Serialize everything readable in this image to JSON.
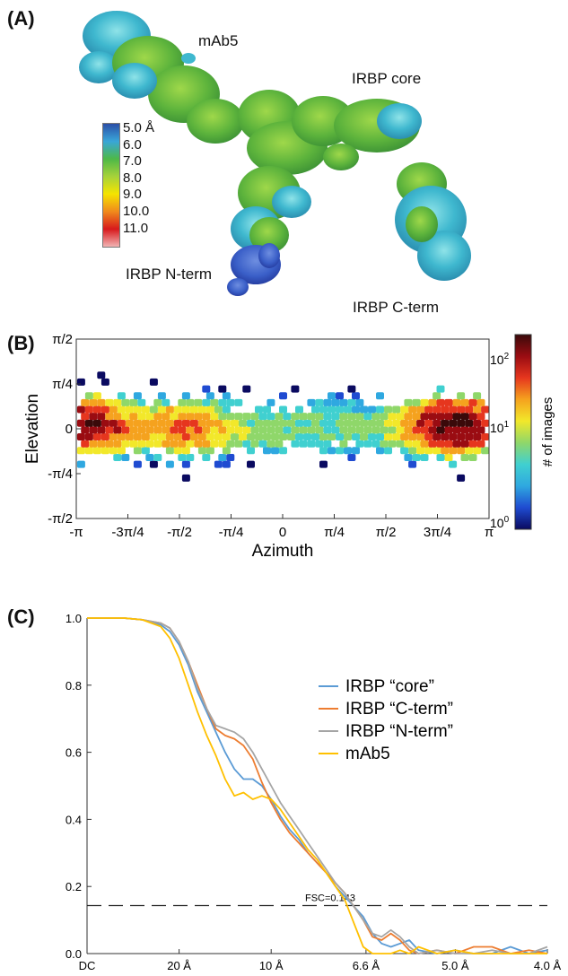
{
  "panels": {
    "a": {
      "label": "(A)",
      "labels": {
        "mab5": "mAb5",
        "core": "IRBP core",
        "nterm": "IRBP N-term",
        "cterm": "IRBP C-term"
      },
      "colorbar": {
        "ticks": [
          "5.0 Å",
          "6.0",
          "7.0",
          "8.0",
          "9.0",
          "10.0",
          "11.0"
        ],
        "colors": [
          "#2b4fa8",
          "#39a6d8",
          "#4db848",
          "#a6d23a",
          "#f5e400",
          "#f08a1c",
          "#d7191c",
          "#f2b4b4"
        ]
      }
    },
    "b": {
      "label": "(B)",
      "xlabel": "Azimuth",
      "ylabel": "Elevation",
      "xticks": [
        "-π",
        "-3π/4",
        "-π/2",
        "-π/4",
        "0",
        "π/4",
        "π/2",
        "3π/4",
        "π"
      ],
      "yticks": [
        "-π/2",
        "-π/4",
        "0",
        "π/4",
        "π/2"
      ],
      "colorbar_label": "# of images",
      "colorbar_ticks": [
        {
          "base": "10",
          "exp": "0"
        },
        {
          "base": "10",
          "exp": "1"
        },
        {
          "base": "10",
          "exp": "2"
        }
      ],
      "colormap": [
        "#0a0a60",
        "#1f4bd1",
        "#2fa8e0",
        "#40d0d0",
        "#8fd76a",
        "#f2e82a",
        "#f5a21e",
        "#e6361e",
        "#9a0c12",
        "#3a0a0a"
      ]
    },
    "c": {
      "label": "(C)",
      "annotation": "FSC=0.143",
      "threshold": 0.143
    }
  },
  "chart_data": [
    {
      "type": "heatmap",
      "title": "",
      "xlabel": "Azimuth",
      "ylabel": "Elevation",
      "xlim": [
        -3.1416,
        3.1416
      ],
      "ylim": [
        -1.5708,
        1.5708
      ],
      "xticks": [
        "-π",
        "-3π/4",
        "-π/2",
        "-π/4",
        "0",
        "π/4",
        "π/2",
        "3π/4",
        "π"
      ],
      "yticks": [
        "-π/2",
        "-π/4",
        "0",
        "π/4",
        "π/2"
      ],
      "colorbar": {
        "label": "# of images",
        "scale": "log",
        "range": [
          1,
          300
        ]
      },
      "density_peaks": [
        {
          "azimuth": -3.05,
          "elevation": 0.05,
          "count": 200
        },
        {
          "azimuth": -1.5,
          "elevation": 0.0,
          "count": 60
        },
        {
          "azimuth": 2.65,
          "elevation": 0.05,
          "count": 250
        }
      ]
    },
    {
      "type": "line",
      "title": "",
      "xlabel": "",
      "ylabel": "",
      "xticks": [
        "DC",
        "20 Å",
        "10 Å",
        "6.6 Å",
        "5.0 Å",
        "4.0 Å"
      ],
      "ylim": [
        0,
        1.0
      ],
      "yticks": [
        "0.0",
        "0.2",
        "0.4",
        "0.6",
        "0.8",
        "1.0"
      ],
      "x_unit_note": "x in 1/Å (spatial frequency)",
      "series": [
        {
          "name": "IRBP “core”",
          "color": "#5b9bd5",
          "x": [
            0,
            0.02,
            0.03,
            0.04,
            0.045,
            0.05,
            0.055,
            0.06,
            0.065,
            0.07,
            0.075,
            0.08,
            0.085,
            0.09,
            0.095,
            0.1,
            0.105,
            0.11,
            0.115,
            0.12,
            0.125,
            0.13,
            0.135,
            0.14,
            0.145,
            0.15,
            0.155,
            0.16,
            0.165,
            0.17,
            0.175,
            0.18,
            0.19,
            0.2,
            0.21,
            0.22,
            0.23,
            0.24,
            0.25
          ],
          "values": [
            1.0,
            1.0,
            0.995,
            0.98,
            0.96,
            0.92,
            0.86,
            0.78,
            0.72,
            0.66,
            0.6,
            0.55,
            0.52,
            0.52,
            0.5,
            0.46,
            0.41,
            0.37,
            0.34,
            0.3,
            0.27,
            0.24,
            0.2,
            0.17,
            0.14,
            0.11,
            0.06,
            0.03,
            0.02,
            0.03,
            0.04,
            0.01,
            0.0,
            0.01,
            0.0,
            0.0,
            0.02,
            0.0,
            0.01
          ]
        },
        {
          "name": "IRBP “C-term”",
          "color": "#ed7d31",
          "x": [
            0,
            0.02,
            0.03,
            0.04,
            0.045,
            0.05,
            0.055,
            0.06,
            0.065,
            0.07,
            0.075,
            0.08,
            0.085,
            0.09,
            0.095,
            0.1,
            0.105,
            0.11,
            0.115,
            0.12,
            0.125,
            0.13,
            0.135,
            0.14,
            0.145,
            0.15,
            0.155,
            0.16,
            0.165,
            0.17,
            0.175,
            0.18,
            0.19,
            0.2,
            0.21,
            0.22,
            0.23,
            0.24,
            0.25
          ],
          "values": [
            1.0,
            1.0,
            0.995,
            0.985,
            0.97,
            0.93,
            0.87,
            0.8,
            0.73,
            0.67,
            0.65,
            0.64,
            0.62,
            0.58,
            0.51,
            0.45,
            0.4,
            0.36,
            0.33,
            0.3,
            0.27,
            0.24,
            0.21,
            0.18,
            0.14,
            0.1,
            0.05,
            0.04,
            0.06,
            0.04,
            0.01,
            0.0,
            0.01,
            0.0,
            0.02,
            0.02,
            0.0,
            0.01,
            0.0
          ]
        },
        {
          "name": "IRBP “N-term”",
          "color": "#a5a5a5",
          "x": [
            0,
            0.02,
            0.03,
            0.04,
            0.045,
            0.05,
            0.055,
            0.06,
            0.065,
            0.07,
            0.075,
            0.08,
            0.085,
            0.09,
            0.095,
            0.1,
            0.105,
            0.11,
            0.115,
            0.12,
            0.125,
            0.13,
            0.135,
            0.14,
            0.145,
            0.15,
            0.155,
            0.16,
            0.165,
            0.17,
            0.175,
            0.18,
            0.19,
            0.2,
            0.21,
            0.22,
            0.23,
            0.24,
            0.25
          ],
          "values": [
            1.0,
            1.0,
            0.995,
            0.985,
            0.97,
            0.93,
            0.87,
            0.79,
            0.73,
            0.68,
            0.67,
            0.66,
            0.64,
            0.6,
            0.55,
            0.5,
            0.45,
            0.41,
            0.37,
            0.33,
            0.29,
            0.25,
            0.21,
            0.18,
            0.14,
            0.1,
            0.06,
            0.05,
            0.07,
            0.05,
            0.02,
            0.0,
            0.01,
            0.0,
            0.0,
            0.01,
            0.0,
            0.0,
            0.02
          ]
        },
        {
          "name": "mAb5",
          "color": "#ffc000",
          "x": [
            0,
            0.02,
            0.03,
            0.04,
            0.045,
            0.05,
            0.055,
            0.06,
            0.065,
            0.07,
            0.075,
            0.08,
            0.085,
            0.09,
            0.095,
            0.1,
            0.105,
            0.11,
            0.115,
            0.12,
            0.125,
            0.13,
            0.135,
            0.14,
            0.145,
            0.15,
            0.155,
            0.16,
            0.165,
            0.17,
            0.175,
            0.18,
            0.19,
            0.2,
            0.21,
            0.22,
            0.23,
            0.24,
            0.25
          ],
          "values": [
            1.0,
            1.0,
            0.995,
            0.975,
            0.94,
            0.88,
            0.8,
            0.72,
            0.65,
            0.59,
            0.52,
            0.47,
            0.48,
            0.46,
            0.47,
            0.46,
            0.43,
            0.39,
            0.35,
            0.31,
            0.28,
            0.24,
            0.2,
            0.16,
            0.09,
            0.02,
            0.0,
            0.0,
            0.0,
            0.01,
            0.0,
            0.02,
            0.0,
            0.01,
            0.0,
            0.0,
            0.0,
            0.0,
            0.0
          ]
        }
      ]
    }
  ]
}
